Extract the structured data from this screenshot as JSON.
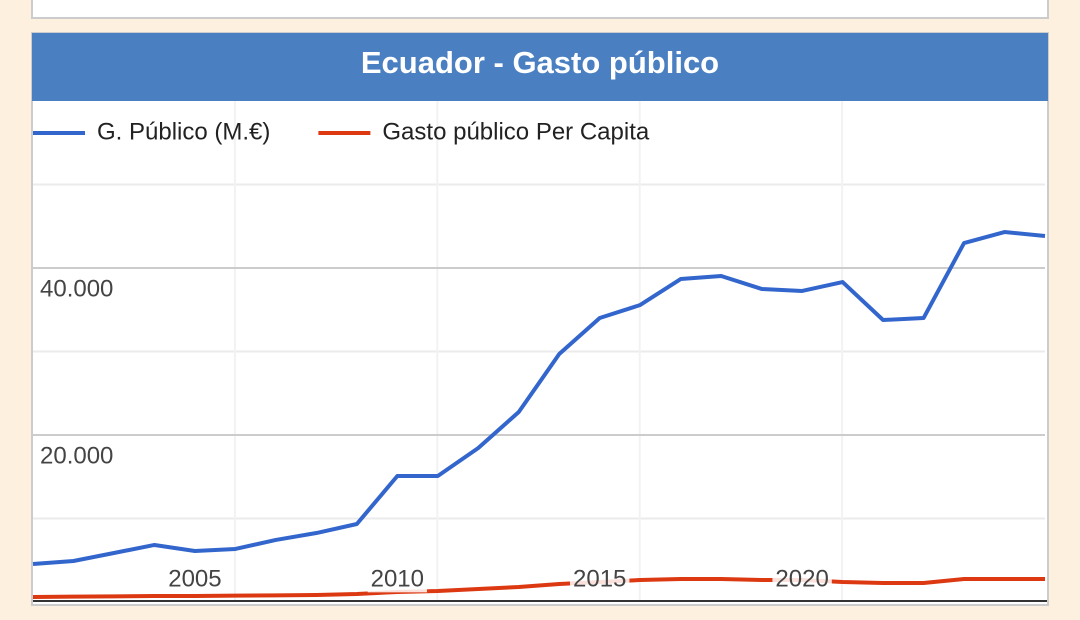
{
  "chart_data": {
    "type": "line",
    "title": "Ecuador - Gasto público",
    "x": [
      2001,
      2002,
      2003,
      2004,
      2005,
      2006,
      2007,
      2008,
      2009,
      2010,
      2011,
      2012,
      2013,
      2014,
      2015,
      2016,
      2017,
      2018,
      2019,
      2020,
      2021,
      2022,
      2023,
      2024,
      2025,
      2026
    ],
    "series": [
      {
        "name": "G. Público (M.€)",
        "color": "#3366cc",
        "values": [
          4550,
          4910,
          5870,
          6830,
          6110,
          6350,
          7430,
          8260,
          9340,
          15090,
          15090,
          18440,
          22750,
          29700,
          34010,
          35570,
          38680,
          39040,
          37490,
          37250,
          38320,
          33770,
          34010,
          42990,
          44310,
          43830
        ]
      },
      {
        "name": "Gasto público Per Capita",
        "color": "#dc3912",
        "values": [
          600,
          640,
          680,
          720,
          720,
          760,
          800,
          840,
          960,
          1200,
          1320,
          1560,
          1800,
          2160,
          2400,
          2630,
          2750,
          2750,
          2630,
          2630,
          2400,
          2280,
          2280,
          2750,
          2750,
          2750
        ]
      }
    ],
    "xlim": [
      2001,
      2026
    ],
    "xticks": [
      2005,
      2010,
      2015,
      2020
    ],
    "ylim": [
      0,
      60000
    ],
    "yticks": [
      {
        "value": 20000,
        "label": "20.000"
      },
      {
        "value": 40000,
        "label": "40.000"
      }
    ],
    "minor_yticks": [
      10000,
      30000,
      50000
    ],
    "grid": true,
    "legend": "top"
  }
}
